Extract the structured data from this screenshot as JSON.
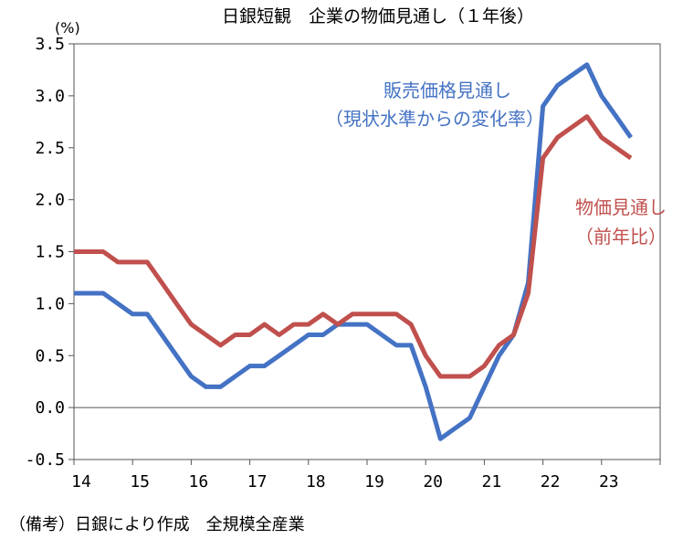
{
  "chart_data": {
    "type": "line",
    "title": "日銀短観　企業の物価見通し（１年後）",
    "ylabel": "(%)",
    "note": "（備考）日銀により作成　全規模全産業",
    "ylim": [
      -0.5,
      3.5
    ],
    "yticks": [
      "3.5",
      "3.0",
      "2.5",
      "2.0",
      "1.5",
      "1.0",
      "0.5",
      "0.0",
      "-0.5"
    ],
    "ytick_values": [
      3.5,
      3.0,
      2.5,
      2.0,
      1.5,
      1.0,
      0.5,
      0.0,
      -0.5
    ],
    "xlim": [
      2014,
      2024
    ],
    "xticks": [
      "14",
      "15",
      "16",
      "17",
      "18",
      "19",
      "20",
      "21",
      "22",
      "23"
    ],
    "xtick_values": [
      2014,
      2015,
      2016,
      2017,
      2018,
      2019,
      2020,
      2021,
      2022,
      2023
    ],
    "grid": false,
    "series": [
      {
        "name": "販売価格見通し（現状水準からの変化率）",
        "name_line1": "販売価格見通し",
        "name_line2": "（現状水準からの変化率）",
        "color": "#4472c4",
        "x": [
          2014.0,
          2014.25,
          2014.5,
          2014.75,
          2015.0,
          2015.25,
          2015.5,
          2015.75,
          2016.0,
          2016.25,
          2016.5,
          2016.75,
          2017.0,
          2017.25,
          2017.5,
          2017.75,
          2018.0,
          2018.25,
          2018.5,
          2018.75,
          2019.0,
          2019.25,
          2019.5,
          2019.75,
          2020.0,
          2020.25,
          2020.5,
          2020.75,
          2021.0,
          2021.25,
          2021.5,
          2021.75,
          2022.0,
          2022.25,
          2022.5,
          2022.75,
          2023.0,
          2023.25,
          2023.5,
          2023.75
        ],
        "values": [
          1.1,
          1.1,
          1.1,
          1.0,
          0.9,
          0.9,
          0.7,
          0.5,
          0.3,
          0.2,
          0.2,
          0.3,
          0.4,
          0.4,
          0.5,
          0.6,
          0.7,
          0.7,
          0.8,
          0.8,
          0.8,
          0.7,
          0.6,
          0.6,
          0.2,
          -0.3,
          -0.2,
          -0.1,
          0.2,
          0.5,
          0.7,
          1.2,
          2.9,
          3.1,
          3.2,
          3.3,
          3.0,
          2.8,
          2.6,
          null
        ]
      },
      {
        "name": "物価見通し（前年比）",
        "name_line1": "物価見通し",
        "name_line2": "（前年比）",
        "color": "#c0504d",
        "x": [
          2014.0,
          2014.25,
          2014.5,
          2014.75,
          2015.0,
          2015.25,
          2015.5,
          2015.75,
          2016.0,
          2016.25,
          2016.5,
          2016.75,
          2017.0,
          2017.25,
          2017.5,
          2017.75,
          2018.0,
          2018.25,
          2018.5,
          2018.75,
          2019.0,
          2019.25,
          2019.5,
          2019.75,
          2020.0,
          2020.25,
          2020.5,
          2020.75,
          2021.0,
          2021.25,
          2021.5,
          2021.75,
          2022.0,
          2022.25,
          2022.5,
          2022.75,
          2023.0,
          2023.25,
          2023.5,
          2023.75
        ],
        "values": [
          1.5,
          1.5,
          1.5,
          1.4,
          1.4,
          1.4,
          1.2,
          1.0,
          0.8,
          0.7,
          0.6,
          0.7,
          0.7,
          0.8,
          0.7,
          0.8,
          0.8,
          0.9,
          0.8,
          0.9,
          0.9,
          0.9,
          0.9,
          0.8,
          0.5,
          0.3,
          0.3,
          0.3,
          0.4,
          0.6,
          0.7,
          1.1,
          2.4,
          2.6,
          2.7,
          2.8,
          2.6,
          2.5,
          2.4,
          null
        ]
      }
    ]
  }
}
